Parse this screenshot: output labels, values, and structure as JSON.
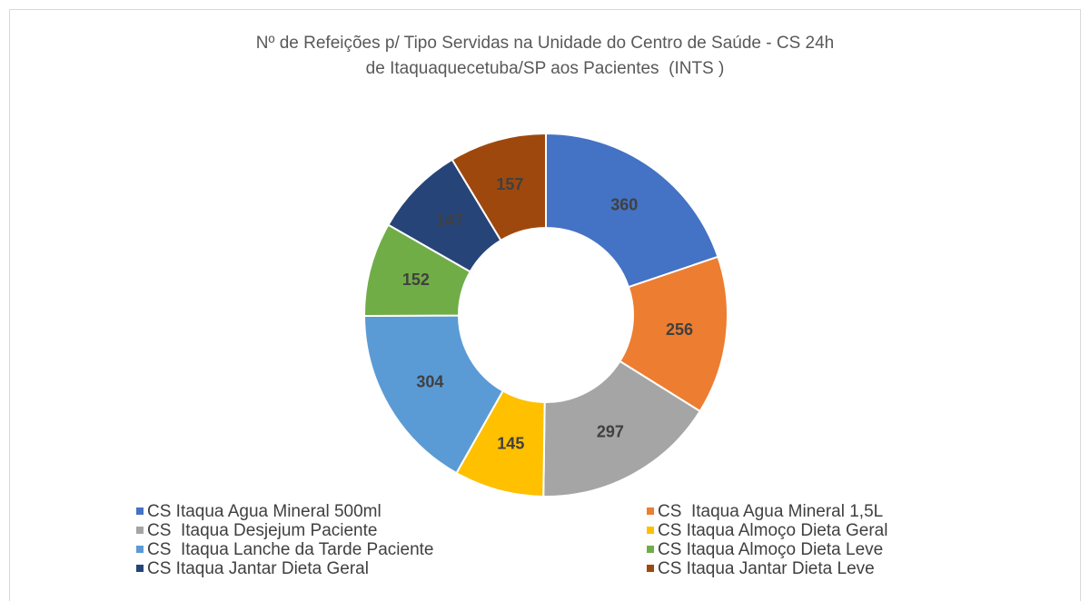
{
  "chart_data": {
    "type": "donut",
    "title": [
      "Nº de Refeições p/ Tipo Servidas na Unidade do Centro de Saúde - CS 24h",
      "de Itaquaquecetuba/SP aos Pacientes  (INTS )"
    ],
    "categories": [
      "CS Itaqua Agua Mineral 500ml",
      "CS  Itaqua Agua Mineral 1,5L",
      "CS  Itaqua Desjejum Paciente",
      "CS Itaqua Almoço Dieta Geral",
      "CS  Itaqua Lanche da Tarde Paciente",
      "CS Itaqua Almoço Dieta Leve",
      "CS Itaqua Jantar Dieta Geral",
      "CS Itaqua Jantar Dieta Leve"
    ],
    "values": [
      360,
      256,
      297,
      145,
      304,
      152,
      147,
      157
    ],
    "colors": [
      "#4472c4",
      "#ed7d31",
      "#a5a5a5",
      "#ffc000",
      "#5b9bd5",
      "#70ad47",
      "#264478",
      "#9e480e"
    ],
    "legend": "bottom"
  }
}
